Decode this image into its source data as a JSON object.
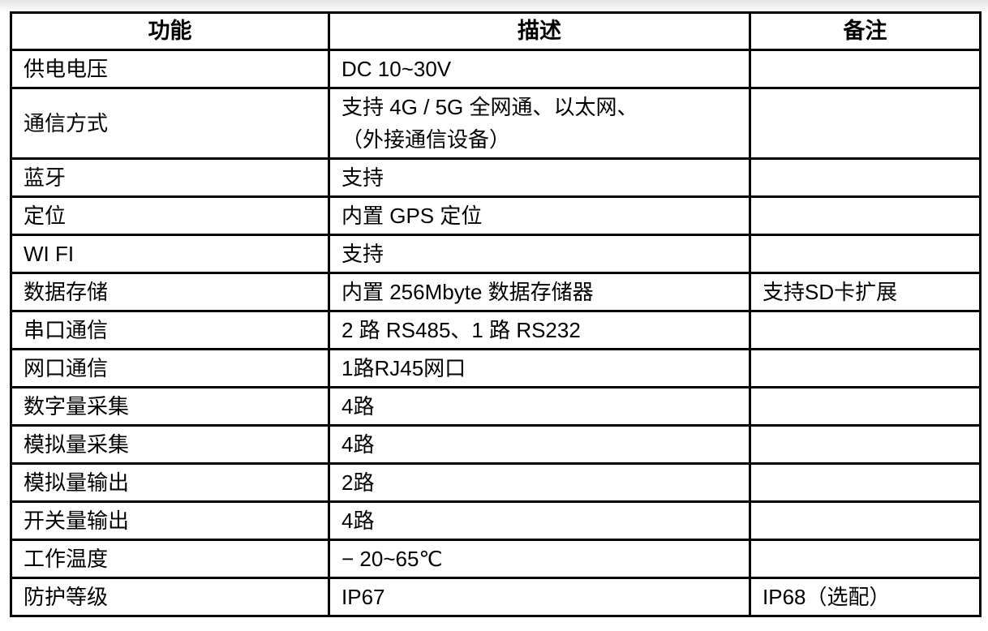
{
  "table": {
    "columns": [
      {
        "key": "function",
        "label": "功能"
      },
      {
        "key": "description",
        "label": "描述"
      },
      {
        "key": "remark",
        "label": "备注"
      }
    ],
    "rows": [
      {
        "function": "供电电压",
        "description": "DC 10~30V",
        "remark": ""
      },
      {
        "function": "通信方式",
        "description": "支持 4G / 5G 全网通、以太网、\n（外接通信设备）",
        "remark": ""
      },
      {
        "function": "蓝牙",
        "description": "支持",
        "remark": ""
      },
      {
        "function": "定位",
        "description": "内置 GPS 定位",
        "remark": ""
      },
      {
        "function": "WI FI",
        "description": "支持",
        "remark": ""
      },
      {
        "function": "数据存储",
        "description": "内置 256Mbyte 数据存储器",
        "remark": "支持SD卡扩展"
      },
      {
        "function": "串口通信",
        "description": "2 路 RS485、1 路 RS232",
        "remark": ""
      },
      {
        "function": "网口通信",
        "description": "1路RJ45网口",
        "remark": ""
      },
      {
        "function": "数字量采集",
        "description": "4路",
        "remark": ""
      },
      {
        "function": "模拟量采集",
        "description": "4路",
        "remark": ""
      },
      {
        "function": "模拟量输出",
        "description": "2路",
        "remark": ""
      },
      {
        "function": "开关量输出",
        "description": "4路",
        "remark": ""
      },
      {
        "function": "工作温度",
        "description": "− 20~65℃",
        "remark": ""
      },
      {
        "function": "防护等级",
        "description": "IP67",
        "remark": "IP68（选配）"
      }
    ]
  },
  "colors": {
    "border": "#000000",
    "background": "#ffffff",
    "text": "#000000",
    "top_band": "#e3e3e3"
  }
}
